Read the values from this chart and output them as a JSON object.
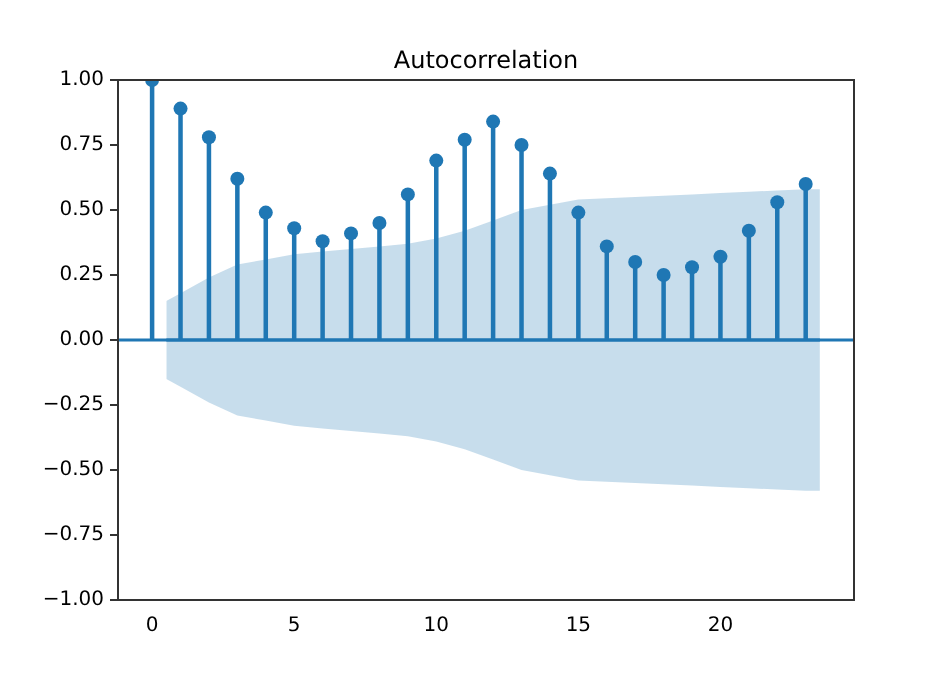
{
  "chart_data": {
    "type": "lollipop",
    "title": "Autocorrelation",
    "xlim": [
      -1.2,
      24.7
    ],
    "xticks": [
      0,
      5,
      10,
      15,
      20
    ],
    "ylim": [
      -1,
      1
    ],
    "yticks": [
      {
        "value": -1,
        "label": "−1.00"
      },
      {
        "value": -0.75,
        "label": "−0.75"
      },
      {
        "value": -0.5,
        "label": "−0.50"
      },
      {
        "value": -0.25,
        "label": "−0.25"
      },
      {
        "value": 0,
        "label": "0.00"
      },
      {
        "value": 0.25,
        "label": "0.25"
      },
      {
        "value": 0.5,
        "label": "0.50"
      },
      {
        "value": 0.75,
        "label": "0.75"
      },
      {
        "value": 1,
        "label": "1.00"
      }
    ],
    "grid": false,
    "legend": false,
    "marker": "circle",
    "ref_lines": [
      {
        "axis": "y",
        "value": 0,
        "color": "#1f77b4"
      }
    ],
    "series": [
      {
        "type": "line",
        "color": "#1f77b4",
        "marker": "none",
        "x": [
          0.5,
          1,
          2,
          3,
          4,
          5,
          6,
          7,
          8,
          9,
          10,
          11,
          12,
          13,
          14,
          15,
          16,
          17,
          18,
          19,
          20,
          21,
          22,
          23,
          23.5
        ],
        "values": [
          0,
          0,
          0,
          0,
          0,
          0,
          0,
          0,
          0,
          0,
          0,
          0,
          0,
          0,
          0,
          0,
          0,
          0,
          0,
          0,
          0,
          0,
          0,
          0,
          0
        ],
        "lower": [
          -0.15,
          -0.18,
          -0.24,
          -0.29,
          -0.31,
          -0.33,
          -0.34,
          -0.35,
          -0.36,
          -0.37,
          -0.39,
          -0.42,
          -0.46,
          -0.5,
          -0.52,
          -0.54,
          -0.545,
          -0.55,
          -0.555,
          -0.56,
          -0.565,
          -0.57,
          -0.575,
          -0.58,
          -0.58
        ],
        "upper": [
          0.15,
          0.18,
          0.24,
          0.29,
          0.31,
          0.33,
          0.34,
          0.35,
          0.36,
          0.37,
          0.39,
          0.42,
          0.46,
          0.5,
          0.52,
          0.54,
          0.545,
          0.55,
          0.555,
          0.56,
          0.565,
          0.57,
          0.575,
          0.58,
          0.58
        ]
      },
      {
        "color": "#1f77b4",
        "x": [
          0,
          1,
          2,
          3,
          4,
          5,
          6,
          7,
          8,
          9,
          10,
          11,
          12,
          13,
          14,
          15,
          16,
          17,
          18,
          19,
          20,
          21,
          22,
          23
        ],
        "values": [
          1,
          0.89,
          0.78,
          0.62,
          0.49,
          0.43,
          0.38,
          0.41,
          0.45,
          0.56,
          0.69,
          0.77,
          0.84,
          0.75,
          0.64,
          0.49,
          0.36,
          0.3,
          0.25,
          0.28,
          0.32,
          0.42,
          0.53,
          0.6
        ]
      }
    ]
  }
}
